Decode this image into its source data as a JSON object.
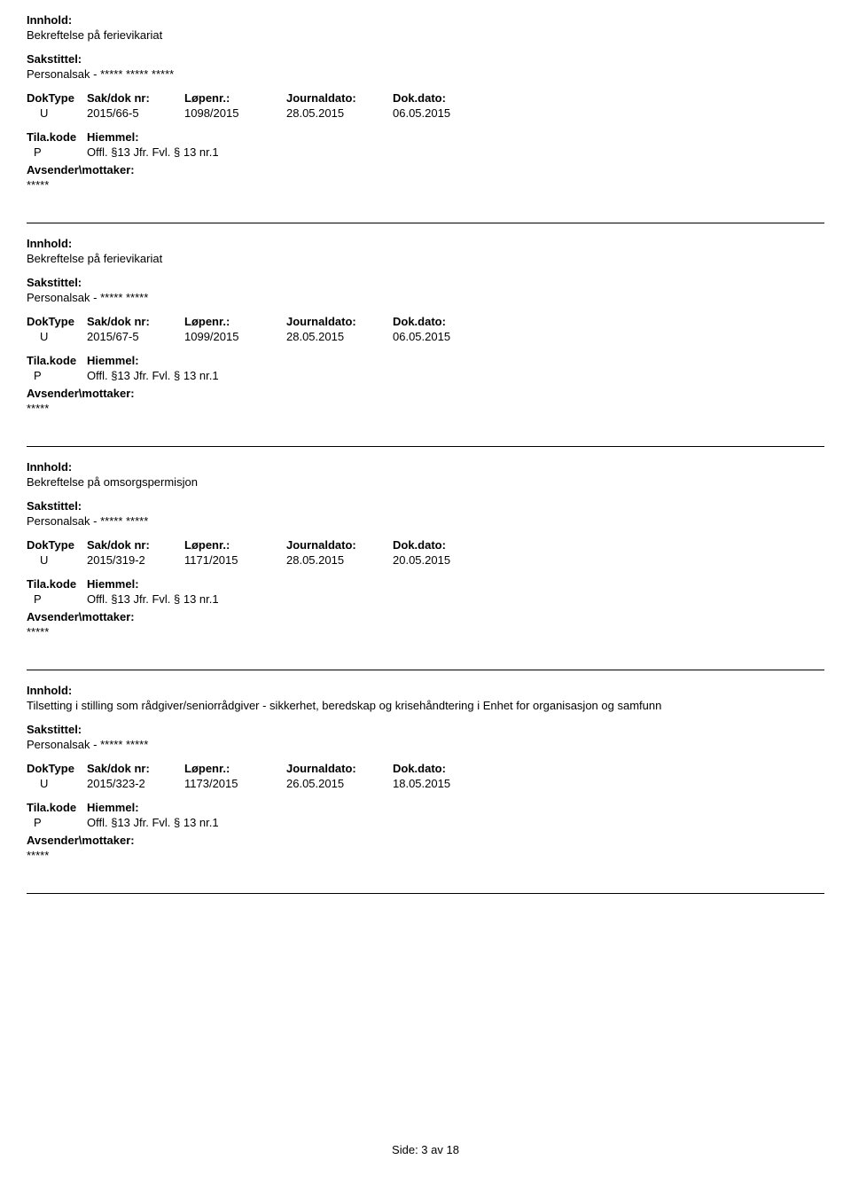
{
  "labels": {
    "innhold": "Innhold:",
    "sakstittel": "Sakstittel:",
    "doktype": "DokType",
    "saknr": "Sak/dok nr:",
    "lopenr": "Løpenr.:",
    "journaldato": "Journaldato:",
    "dokdato": "Dok.dato:",
    "tilakode": "Tila.kode",
    "hiemmel": "Hiemmel:",
    "avsender": "Avsender\\mottaker:"
  },
  "entries": [
    {
      "innhold": "Bekreftelse på ferievikariat",
      "sakstittel": "Personalsak - ***** ***** *****",
      "doktype": "U",
      "saknr": "2015/66-5",
      "lopenr": "1098/2015",
      "journaldato": "28.05.2015",
      "dokdato": "06.05.2015",
      "kode": "P",
      "hiemmel": "Offl. §13 Jfr. Fvl. § 13 nr.1",
      "avsender": "*****"
    },
    {
      "innhold": "Bekreftelse på ferievikariat",
      "sakstittel": "Personalsak - ***** *****",
      "doktype": "U",
      "saknr": "2015/67-5",
      "lopenr": "1099/2015",
      "journaldato": "28.05.2015",
      "dokdato": "06.05.2015",
      "kode": "P",
      "hiemmel": "Offl. §13 Jfr. Fvl. § 13 nr.1",
      "avsender": "*****"
    },
    {
      "innhold": "Bekreftelse på omsorgspermisjon",
      "sakstittel": "Personalsak - ***** *****",
      "doktype": "U",
      "saknr": "2015/319-2",
      "lopenr": "1171/2015",
      "journaldato": "28.05.2015",
      "dokdato": "20.05.2015",
      "kode": "P",
      "hiemmel": "Offl. §13 Jfr. Fvl. § 13 nr.1",
      "avsender": "*****"
    },
    {
      "innhold": "Tilsetting i stilling som rådgiver/seniorrådgiver - sikkerhet, beredskap og krisehåndtering i Enhet for organisasjon og samfunn",
      "sakstittel": "Personalsak - ***** *****",
      "doktype": "U",
      "saknr": "2015/323-2",
      "lopenr": "1173/2015",
      "journaldato": "26.05.2015",
      "dokdato": "18.05.2015",
      "kode": "P",
      "hiemmel": "Offl. §13 Jfr. Fvl. § 13 nr.1",
      "avsender": "*****"
    }
  ],
  "footer": "Side: 3 av 18",
  "colors": {
    "text": "#000000",
    "background": "#ffffff",
    "divider": "#000000"
  }
}
